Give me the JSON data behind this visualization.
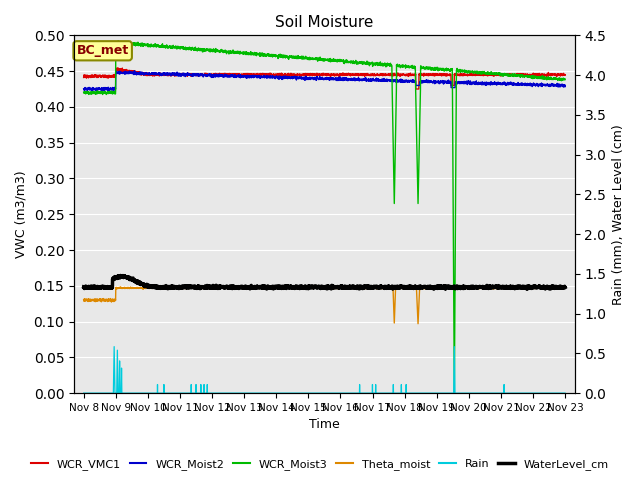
{
  "title": "Soil Moisture",
  "ylabel_left": "VWC (m3/m3)",
  "ylabel_right": "Rain (mm), Water Level (cm)",
  "xlabel": "Time",
  "annotation_text": "BC_met",
  "ylim_left": [
    0.0,
    0.5
  ],
  "ylim_right": [
    0.0,
    4.5
  ],
  "yticks_left": [
    0.0,
    0.05,
    0.1,
    0.15,
    0.2,
    0.25,
    0.3,
    0.35,
    0.4,
    0.45,
    0.5
  ],
  "yticks_right": [
    0.0,
    0.5,
    1.0,
    1.5,
    2.0,
    2.5,
    3.0,
    3.5,
    4.0,
    4.5
  ],
  "background_color": "#e8e8e8",
  "colors": {
    "WCR_VMC1": "#dd0000",
    "WCR_Moist2": "#0000cc",
    "WCR_Moist3": "#00bb00",
    "Theta_moist": "#dd8800",
    "Rain": "#00ccdd",
    "WaterLevel_cm": "#000000"
  }
}
